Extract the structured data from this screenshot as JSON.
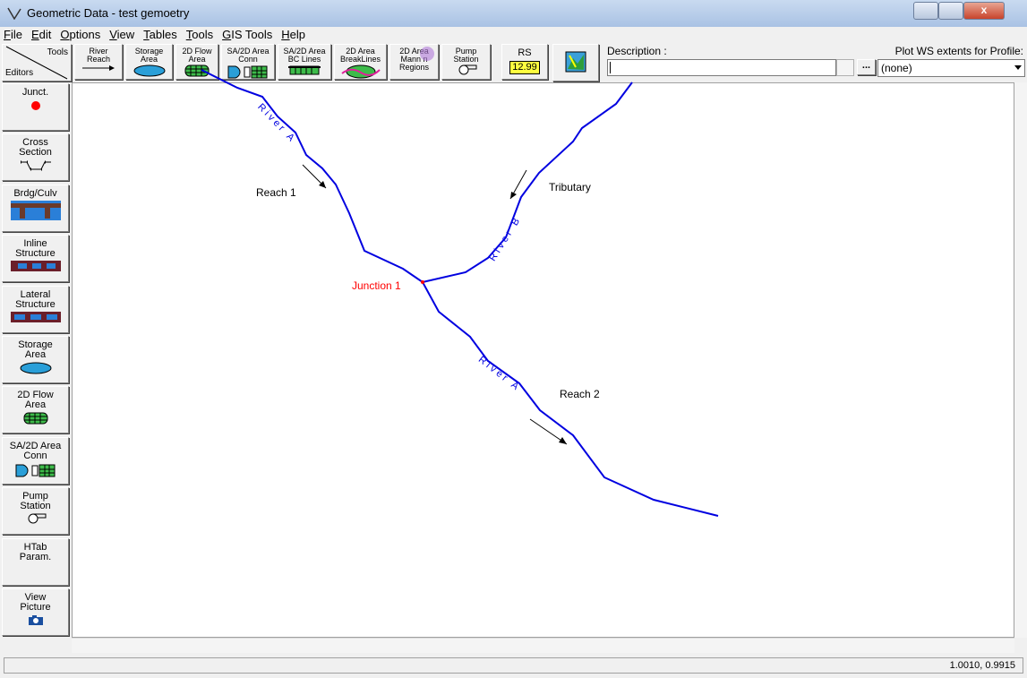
{
  "window": {
    "title": "Geometric Data - test gemoetry"
  },
  "menu": [
    "File",
    "Edit",
    "Options",
    "View",
    "Tables",
    "Tools",
    "GIS Tools",
    "Help"
  ],
  "toolbar": {
    "corner": [
      "Tools",
      "Editors"
    ],
    "buttons": [
      [
        "River",
        "Reach"
      ],
      [
        "Storage",
        "Area"
      ],
      [
        "2D Flow",
        "Area"
      ],
      [
        "SA/2D Area",
        "Conn"
      ],
      [
        "SA/2D Area",
        "BC Lines"
      ],
      [
        "2D Area",
        "BreakLines"
      ],
      [
        "2D Area",
        "Mann n",
        "Regions"
      ],
      [
        "Pump",
        "Station"
      ],
      [
        "RS"
      ]
    ],
    "rs_value": "12.99",
    "description_label": "Description :",
    "description_button": "...",
    "plot_ws_label": "Plot WS extents for Profile:",
    "profile_select": "(none)"
  },
  "editors": [
    [
      "Junct."
    ],
    [
      "Cross",
      "Section"
    ],
    [
      "Brdg/Culv"
    ],
    [
      "Inline",
      "Structure"
    ],
    [
      "Lateral",
      "Structure"
    ],
    [
      "Storage",
      "Area"
    ],
    [
      "2D Flow",
      "Area"
    ],
    [
      "SA/2D Area",
      "Conn"
    ],
    [
      "Pump",
      "Station"
    ],
    [
      "HTab",
      "Param."
    ],
    [
      "View",
      "Picture"
    ]
  ],
  "canvas": {
    "river_a_upper": "River A",
    "reach_1": "Reach 1",
    "tributary": "Tributary",
    "river_b": "River B",
    "junction": "Junction 1",
    "river_a_lower": "River A",
    "reach_2": "Reach 2"
  },
  "status": {
    "coordinates": "1.0010, 0.9915"
  }
}
